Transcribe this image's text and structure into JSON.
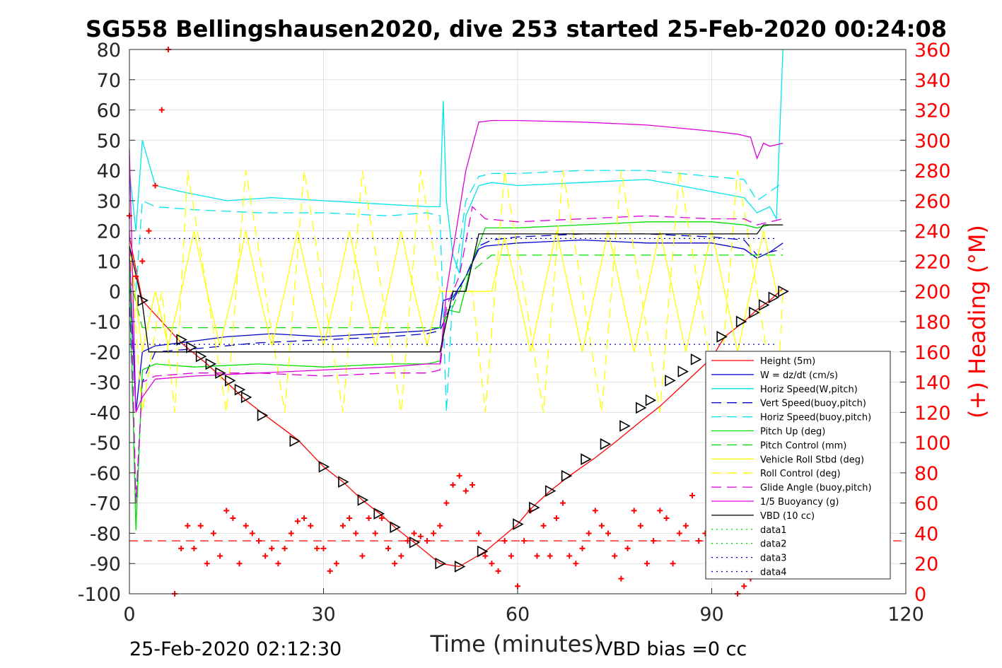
{
  "chart_data": {
    "type": "line",
    "title": "SG558 Bellingshausen2020, dive 253 started 25-Feb-2020 00:24:08",
    "xlabel": "Time (minutes)",
    "ylabel": "",
    "y2label": "(+) Heading (°M)",
    "xlim": [
      0,
      120
    ],
    "ylim": [
      -100,
      80
    ],
    "y2lim": [
      0,
      360
    ],
    "xticks": [
      "0",
      "30",
      "60",
      "90",
      "120"
    ],
    "yticks": [
      "80",
      "70",
      "60",
      "50",
      "40",
      "30",
      "20",
      "10",
      "0",
      "-10",
      "-20",
      "-30",
      "-40",
      "-50",
      "-60",
      "-70",
      "-80",
      "-90",
      "-100"
    ],
    "y2ticks": [
      "360",
      "340",
      "320",
      "300",
      "280",
      "260",
      "240",
      "220",
      "200",
      "180",
      "160",
      "140",
      "120",
      "100",
      "80",
      "60",
      "40",
      "20",
      "0"
    ],
    "grid": true,
    "legend_position": "bottom-right",
    "footer_left": "25-Feb-2020 02:12:30",
    "footer_right": "VBD bias =0 cc",
    "series": [
      {
        "name": "Height (5m)",
        "color": "#ff0000",
        "style": "solid",
        "x": [
          0,
          2,
          8,
          12,
          18,
          21,
          26,
          30,
          33,
          36,
          39,
          41,
          44,
          48,
          51,
          55,
          60,
          62,
          65,
          68,
          72,
          75,
          79,
          82,
          86,
          90,
          92,
          95,
          97,
          99,
          101
        ],
        "y": [
          18,
          -3,
          -17,
          -24,
          -36,
          -41,
          -49,
          -58,
          -63,
          -69,
          -74,
          -78,
          -83,
          -90,
          -91,
          -86,
          -77,
          -72,
          -66,
          -61,
          -55,
          -50,
          -43,
          -38,
          -30,
          -22,
          -15,
          -10,
          -6,
          -3,
          1
        ]
      },
      {
        "name": "W = dz/dt (cm/s)",
        "color": "#0000cc",
        "style": "solid",
        "x": [
          0,
          1,
          2,
          4,
          8,
          15,
          22,
          30,
          38,
          46,
          48,
          48.5,
          50,
          52,
          54,
          55,
          60,
          70,
          80,
          90,
          95,
          97,
          99,
          101
        ],
        "y": [
          12,
          -40,
          -20,
          -18,
          -17,
          -15,
          -14,
          -15,
          -14,
          -13,
          -12,
          -3,
          -2,
          5,
          14,
          15,
          16,
          17,
          16,
          16,
          14,
          11,
          13,
          16
        ]
      },
      {
        "name": "Horiz Speed(W,pitch)",
        "color": "#00e5ee",
        "style": "solid",
        "x": [
          0,
          1,
          2,
          4,
          8,
          15,
          22,
          30,
          38,
          46,
          48,
          48.5,
          49,
          50,
          51,
          52,
          54,
          56,
          60,
          70,
          80,
          90,
          95,
          97,
          99,
          100,
          101
        ],
        "y": [
          40,
          20,
          50,
          35,
          33,
          30,
          31,
          30,
          29,
          28,
          28,
          63,
          30,
          12,
          6,
          25,
          35,
          36,
          35,
          36,
          37,
          33,
          31,
          26,
          28,
          24,
          80
        ]
      },
      {
        "name": "Vert Speed(buoy,pitch)",
        "color": "#0000cc",
        "style": "dashed",
        "x": [
          0,
          1,
          2,
          4,
          10,
          20,
          30,
          40,
          46,
          48,
          50,
          52,
          54,
          56,
          60,
          70,
          80,
          90,
          95,
          97,
          101
        ],
        "y": [
          0,
          -70,
          -30,
          -20,
          -19,
          -17,
          -16,
          -15,
          -14,
          -13,
          -3,
          5,
          15,
          17,
          18,
          19,
          19,
          18,
          17,
          12,
          14
        ]
      },
      {
        "name": "Horiz Speed(buoy,pitch)",
        "color": "#00e5ee",
        "style": "dashed",
        "x": [
          0,
          1,
          2,
          4,
          10,
          20,
          30,
          40,
          46,
          48,
          49,
          50,
          52,
          54,
          56,
          60,
          70,
          80,
          90,
          95,
          97,
          101
        ],
        "y": [
          10,
          0,
          30,
          28,
          27,
          26,
          26,
          25,
          26,
          25,
          -40,
          0,
          30,
          38,
          39,
          39,
          40,
          40,
          38,
          37,
          30,
          36
        ]
      },
      {
        "name": "Pitch Up (deg)",
        "color": "#00dd00",
        "style": "solid",
        "x": [
          0,
          1,
          2,
          4,
          10,
          20,
          30,
          40,
          46,
          48,
          49,
          51,
          53,
          55,
          60,
          70,
          80,
          90,
          95,
          97,
          99,
          101
        ],
        "y": [
          10,
          -79,
          -26,
          -24,
          -25,
          -24,
          -25,
          -24,
          -24,
          -23,
          -6,
          -7,
          10,
          21,
          21,
          22,
          23,
          23,
          22,
          21,
          22,
          22
        ]
      },
      {
        "name": "Pitch Control (mm)",
        "color": "#00dd00",
        "style": "dashed",
        "x": [
          0,
          2,
          4,
          10,
          20,
          30,
          40,
          48,
          50,
          52,
          56,
          60,
          70,
          80,
          90,
          95,
          98,
          101
        ],
        "y": [
          5,
          -12,
          -12,
          -12,
          -12,
          -12,
          -12,
          -12,
          -5,
          5,
          12,
          12,
          12,
          12,
          12,
          12,
          12,
          12
        ]
      },
      {
        "name": "Vehicle Roll Stbd (deg)",
        "color": "#ffff00",
        "style": "solid",
        "x": [
          0,
          2,
          4,
          6,
          8,
          10,
          12,
          14,
          16,
          18,
          20,
          22,
          24,
          26,
          28,
          30,
          32,
          34,
          36,
          38,
          40,
          42,
          44,
          46,
          48,
          50,
          52,
          54,
          56,
          58,
          60,
          62,
          64,
          66,
          68,
          70,
          72,
          74,
          76,
          78,
          80,
          82,
          84,
          86,
          88,
          90,
          92,
          94,
          96,
          98,
          100,
          101
        ],
        "y": [
          15,
          -20,
          0,
          -18,
          0,
          20,
          0,
          -18,
          0,
          20,
          0,
          -18,
          0,
          20,
          0,
          -18,
          0,
          20,
          0,
          -18,
          0,
          20,
          0,
          -18,
          0,
          0,
          0,
          0,
          0,
          18,
          0,
          -20,
          0,
          20,
          0,
          -20,
          0,
          20,
          0,
          -20,
          0,
          20,
          0,
          -20,
          0,
          20,
          0,
          -20,
          0,
          20,
          0,
          0
        ]
      },
      {
        "name": "Roll Control (deg)",
        "color": "#ffff00",
        "style": "dashed",
        "x": [
          0,
          2,
          5,
          7,
          9,
          12,
          15,
          18,
          21,
          24,
          27,
          30,
          33,
          36,
          39,
          42,
          45,
          48,
          50,
          53,
          55,
          58,
          61,
          64,
          67,
          70,
          73,
          76,
          79,
          82,
          85,
          88,
          91,
          94,
          97,
          100,
          101
        ],
        "y": [
          15,
          -40,
          0,
          -40,
          40,
          0,
          -40,
          40,
          0,
          -40,
          40,
          0,
          -40,
          40,
          0,
          -40,
          40,
          0,
          0,
          0,
          -40,
          40,
          0,
          -40,
          40,
          0,
          -40,
          40,
          0,
          -40,
          40,
          0,
          -40,
          40,
          0,
          -40,
          0
        ]
      },
      {
        "name": "Glide Angle (buoy,pitch)",
        "color": "#dd00dd",
        "style": "dashed",
        "x": [
          0,
          1,
          2,
          4,
          10,
          20,
          30,
          40,
          46,
          48,
          49,
          51,
          53,
          55,
          60,
          70,
          80,
          90,
          95,
          97,
          101
        ],
        "y": [
          20,
          -70,
          -30,
          -28,
          -27,
          -27,
          -28,
          -27,
          -27,
          -26,
          -5,
          5,
          28,
          24,
          23,
          24,
          25,
          24,
          24,
          22,
          24
        ]
      },
      {
        "name": "1/5 Buoyancy (g)",
        "color": "#dd00dd",
        "style": "solid",
        "x": [
          0,
          1,
          2,
          4,
          10,
          20,
          30,
          40,
          46,
          48,
          49,
          52,
          54,
          56,
          60,
          70,
          80,
          90,
          94,
          96,
          97,
          98,
          99,
          101
        ],
        "y": [
          47,
          -40,
          -35,
          -29,
          -28,
          -27,
          -26,
          -25,
          -24,
          -24,
          0,
          40,
          56,
          56.5,
          56.5,
          56,
          55,
          53,
          52,
          51,
          44,
          49,
          48,
          49
        ]
      },
      {
        "name": "VBD (10 cc)",
        "color": "#000000",
        "style": "solid",
        "x": [
          0,
          2,
          3,
          20,
          40,
          48,
          50,
          52,
          54,
          60,
          80,
          97,
          98,
          101
        ],
        "y": [
          15,
          -4,
          -20,
          -20,
          -20,
          -20,
          0,
          0,
          19,
          19,
          19,
          19,
          22,
          22
        ]
      },
      {
        "name": "data1",
        "color": "#00dd00",
        "style": "dotted",
        "x": [],
        "y": []
      },
      {
        "name": "data2",
        "color": "#00dd00",
        "style": "dotted",
        "x": [],
        "y": []
      },
      {
        "name": "data3",
        "color": "#0000cc",
        "style": "dotted",
        "x": [
          0,
          100
        ],
        "y": [
          17.5,
          17.5
        ]
      },
      {
        "name": "data4",
        "color": "#0000cc",
        "style": "dotted",
        "x": [
          0,
          100
        ],
        "y": [
          -17.5,
          -17.5
        ]
      }
    ],
    "heading": {
      "axis": "right",
      "color": "#ff0000",
      "mean_line_deg": 35,
      "x": [
        0,
        1,
        2,
        3,
        4,
        5,
        6,
        7,
        8,
        9,
        10,
        11,
        12,
        13,
        14,
        15,
        16,
        17,
        18,
        19,
        20,
        21,
        22,
        23,
        24,
        25,
        26,
        27,
        28,
        29,
        30,
        31,
        32,
        33,
        34,
        35,
        36,
        37,
        38,
        39,
        40,
        41,
        42,
        43,
        44,
        45,
        46,
        47,
        48,
        49,
        50,
        51,
        52,
        53,
        54,
        55,
        56,
        57,
        58,
        59,
        60,
        61,
        62,
        63,
        64,
        65,
        66,
        67,
        68,
        69,
        70,
        71,
        72,
        73,
        74,
        75,
        76,
        77,
        78,
        79,
        80,
        81,
        82,
        83,
        84,
        85,
        86,
        87,
        88,
        89,
        90,
        91,
        92,
        93,
        94,
        95,
        96,
        97,
        98,
        99,
        100
      ],
      "y": [
        250,
        210,
        220,
        240,
        270,
        320,
        360,
        0,
        30,
        45,
        30,
        45,
        20,
        40,
        25,
        55,
        50,
        20,
        45,
        40,
        35,
        25,
        30,
        20,
        30,
        40,
        48,
        50,
        45,
        30,
        30,
        15,
        20,
        45,
        50,
        40,
        25,
        50,
        40,
        50,
        30,
        20,
        25,
        35,
        40,
        38,
        35,
        40,
        45,
        60,
        72,
        78,
        68,
        72,
        40,
        25,
        20,
        15,
        35,
        25,
        5,
        35,
        55,
        25,
        45,
        25,
        50,
        60,
        25,
        20,
        30,
        40,
        55,
        45,
        40,
        25,
        10,
        30,
        55,
        45,
        20,
        35,
        55,
        50,
        20,
        40,
        45,
        65,
        35,
        40,
        25,
        20,
        25,
        25,
        0,
        5,
        10,
        15,
        20,
        22,
        25
      ]
    },
    "markers": {
      "symbol": "triangle",
      "color": "#000000",
      "x": [
        2,
        8,
        9.5,
        11,
        12.5,
        14,
        15.5,
        17,
        18,
        20.5,
        25.5,
        30,
        33,
        36,
        38.5,
        41,
        44,
        48,
        51,
        54.5,
        60,
        62.5,
        65,
        67.5,
        70.5,
        73.5,
        76.5,
        79,
        80.5,
        83.5,
        85.5,
        87.5,
        91.5,
        94.5,
        96.5,
        98,
        99.5,
        101
      ],
      "y": [
        -3,
        -16,
        -18.5,
        -21.5,
        -24,
        -27,
        -29.5,
        -32.5,
        -35,
        -41,
        -49.5,
        -58,
        -63,
        -69,
        -73.5,
        -78,
        -83,
        -90,
        -91,
        -86,
        -77,
        -71.5,
        -66,
        -61,
        -55.5,
        -50.5,
        -44.5,
        -38.5,
        -36,
        -29.5,
        -26.5,
        -22.5,
        -15,
        -10,
        -7,
        -4.5,
        -2,
        0
      ]
    }
  }
}
